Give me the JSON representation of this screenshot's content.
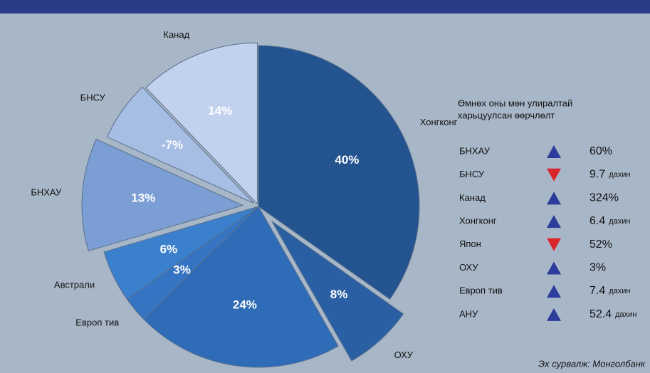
{
  "chart_data": {
    "type": "pie",
    "categories": [
      "Хонгконг",
      "ОХУ",
      "АНУ",
      "Европ тив",
      "Австрали",
      "БНХАУ",
      "БНСУ",
      "Канад"
    ],
    "values": [
      40,
      8,
      24,
      3,
      6,
      13,
      -7,
      14
    ],
    "value_labels": [
      "40%",
      "8%",
      "24%",
      "3%",
      "6%",
      "13%",
      "-7%",
      "14%"
    ],
    "colors": [
      "#24548f",
      "#2a5fa3",
      "#2e6cb8",
      "#3474c2",
      "#3b80cd",
      "#7b9fd5",
      "#a6bde4",
      "#c2d2ee"
    ]
  },
  "change_table": {
    "title": [
      "Өмнөх оны мөн улиралтай",
      "харьцуулсан өөрчлөлт"
    ],
    "rows": [
      {
        "name": "БНХАУ",
        "direction": "up",
        "value": "60%"
      },
      {
        "name": "БНСУ",
        "direction": "down",
        "value": "9.7",
        "suffix": "дахин"
      },
      {
        "name": "Канад",
        "direction": "up",
        "value": "324%"
      },
      {
        "name": "Хонгконг",
        "direction": "up",
        "value": "6.4",
        "suffix": "дахин"
      },
      {
        "name": "Япон",
        "direction": "down",
        "value": "52%"
      },
      {
        "name": "ОХУ",
        "direction": "up",
        "value": "3%"
      },
      {
        "name": "Европ тив",
        "direction": "up",
        "value": "7.4",
        "suffix": "дахин"
      },
      {
        "name": "АНУ",
        "direction": "up",
        "value": "52.4",
        "suffix": "дахин"
      }
    ]
  },
  "source": "Эх сурвалж: Монголбанк"
}
